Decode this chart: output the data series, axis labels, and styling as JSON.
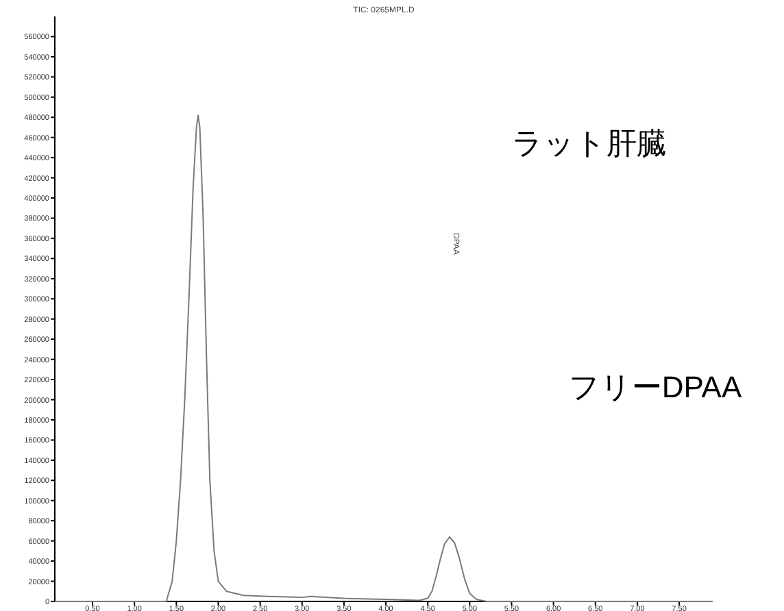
{
  "chart_data": {
    "type": "line",
    "title": "TIC: 0265MPL.D",
    "x": [
      0.05,
      1.38,
      1.45,
      1.5,
      1.55,
      1.6,
      1.65,
      1.7,
      1.74,
      1.76,
      1.78,
      1.82,
      1.86,
      1.9,
      1.95,
      2.0,
      2.1,
      2.3,
      2.6,
      3.0,
      3.1,
      3.5,
      4.0,
      4.4,
      4.5,
      4.55,
      4.6,
      4.65,
      4.7,
      4.76,
      4.82,
      4.88,
      4.94,
      5.0,
      5.08,
      5.2,
      5.5,
      7.9
    ],
    "series": [
      {
        "color": "#7a7a7a",
        "values": [
          0,
          0,
          20000,
          60000,
          120000,
          200000,
          300000,
          410000,
          470000,
          482000,
          470000,
          380000,
          240000,
          120000,
          50000,
          20000,
          10000,
          6000,
          5000,
          4000,
          5000,
          3000,
          2000,
          1000,
          3000,
          10000,
          25000,
          42000,
          57000,
          64000,
          58000,
          42000,
          22000,
          8000,
          2000,
          0,
          0,
          0
        ]
      }
    ],
    "xlim": [
      0.05,
      7.9
    ],
    "xticks": [
      {
        "value": 0.5,
        "label": "0.50"
      },
      {
        "value": 1.0,
        "label": "1.00"
      },
      {
        "value": 1.5,
        "label": "1.50"
      },
      {
        "value": 2.0,
        "label": "2.00"
      },
      {
        "value": 2.5,
        "label": "2.50"
      },
      {
        "value": 3.0,
        "label": "3.00"
      },
      {
        "value": 3.5,
        "label": "3.50"
      },
      {
        "value": 4.0,
        "label": "4.00"
      },
      {
        "value": 4.5,
        "label": "4.50"
      },
      {
        "value": 5.0,
        "label": "5.00"
      },
      {
        "value": 5.5,
        "label": "5.50"
      },
      {
        "value": 6.0,
        "label": "6.00"
      },
      {
        "value": 6.5,
        "label": "6.50"
      },
      {
        "value": 7.0,
        "label": "7.00"
      },
      {
        "value": 7.5,
        "label": "7.50"
      }
    ],
    "ylim": [
      0,
      580000
    ],
    "yticks": [
      0,
      20000,
      40000,
      60000,
      80000,
      100000,
      120000,
      140000,
      160000,
      180000,
      200000,
      220000,
      240000,
      260000,
      280000,
      300000,
      320000,
      340000,
      360000,
      380000,
      400000,
      420000,
      440000,
      460000,
      480000,
      500000,
      520000,
      540000,
      560000
    ],
    "grid": false,
    "marker": "none",
    "line_style": "solid",
    "annotations": [
      "DPAA",
      "ラット肝臓",
      "フリーDPAA"
    ]
  }
}
